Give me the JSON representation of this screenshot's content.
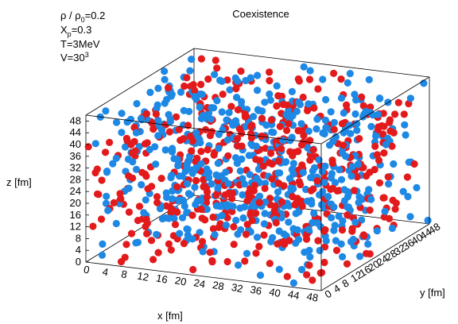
{
  "chart_data": {
    "type": "scatter",
    "title": "Coexistence",
    "xlabel": "x [fm]",
    "ylabel": "y [fm]",
    "zlabel": "z [fm]",
    "xlim": [
      0,
      50
    ],
    "ylim": [
      0,
      50
    ],
    "zlim": [
      0,
      50
    ],
    "x_ticks": [
      "0",
      "4",
      "8",
      "12",
      "16",
      "20",
      "24",
      "28",
      "32",
      "36",
      "40",
      "44",
      "48"
    ],
    "y_ticks": [
      "0",
      "4",
      "8",
      "12",
      "16",
      "20",
      "24",
      "28",
      "32",
      "36",
      "40",
      "44",
      "48"
    ],
    "z_ticks": [
      "0",
      "4",
      "8",
      "12",
      "16",
      "20",
      "24",
      "28",
      "32",
      "36",
      "40",
      "44",
      "48"
    ],
    "parameters": {
      "density": {
        "lhs": "ρ / ρ",
        "sub": "0",
        "rhs": "=0.2"
      },
      "proton_fraction": {
        "lhs": "X",
        "sub": "p",
        "rhs": "=0.3"
      },
      "temperature": "T=3MeV",
      "volume": {
        "lhs": "V=30",
        "sup": "3"
      }
    },
    "series": [
      {
        "color": "#1e88e5",
        "count": 560,
        "seed": 11
      },
      {
        "color": "#e31a1c",
        "count": 460,
        "seed": 29
      }
    ]
  }
}
